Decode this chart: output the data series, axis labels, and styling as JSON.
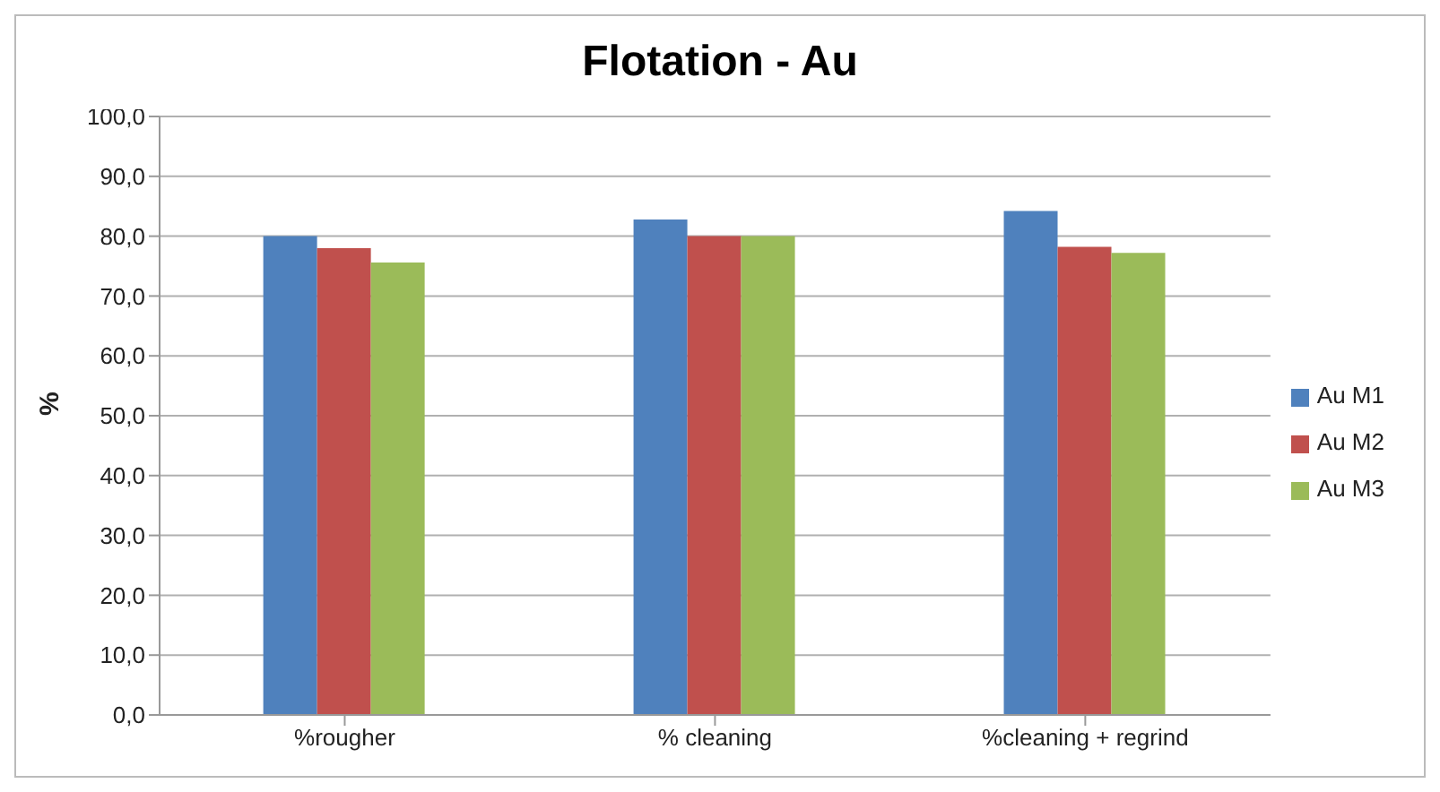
{
  "chart_data": {
    "type": "bar",
    "title": "Flotation - Au",
    "ylabel": "%",
    "categories": [
      "%rougher",
      "% cleaning",
      "%cleaning + regrind"
    ],
    "series": [
      {
        "name": "Au M1",
        "color": "#4f81bd",
        "values": [
          80.0,
          82.8,
          84.2
        ]
      },
      {
        "name": "Au M2",
        "color": "#c0504d",
        "values": [
          78.0,
          80.0,
          78.2
        ]
      },
      {
        "name": "Au M3",
        "color": "#9bbb59",
        "values": [
          75.6,
          80.0,
          77.2
        ]
      }
    ],
    "ylim": [
      0,
      100
    ],
    "yticks": [
      {
        "value": 0,
        "label": "0,0"
      },
      {
        "value": 10,
        "label": "10,0"
      },
      {
        "value": 20,
        "label": "20,0"
      },
      {
        "value": 30,
        "label": "30,0"
      },
      {
        "value": 40,
        "label": "40,0"
      },
      {
        "value": 50,
        "label": "50,0"
      },
      {
        "value": 60,
        "label": "60,0"
      },
      {
        "value": 70,
        "label": "70,0"
      },
      {
        "value": 80,
        "label": "80,0"
      },
      {
        "value": 90,
        "label": "90,0"
      },
      {
        "value": 100,
        "label": "100,0"
      }
    ],
    "grid": "y",
    "legend": "right"
  }
}
